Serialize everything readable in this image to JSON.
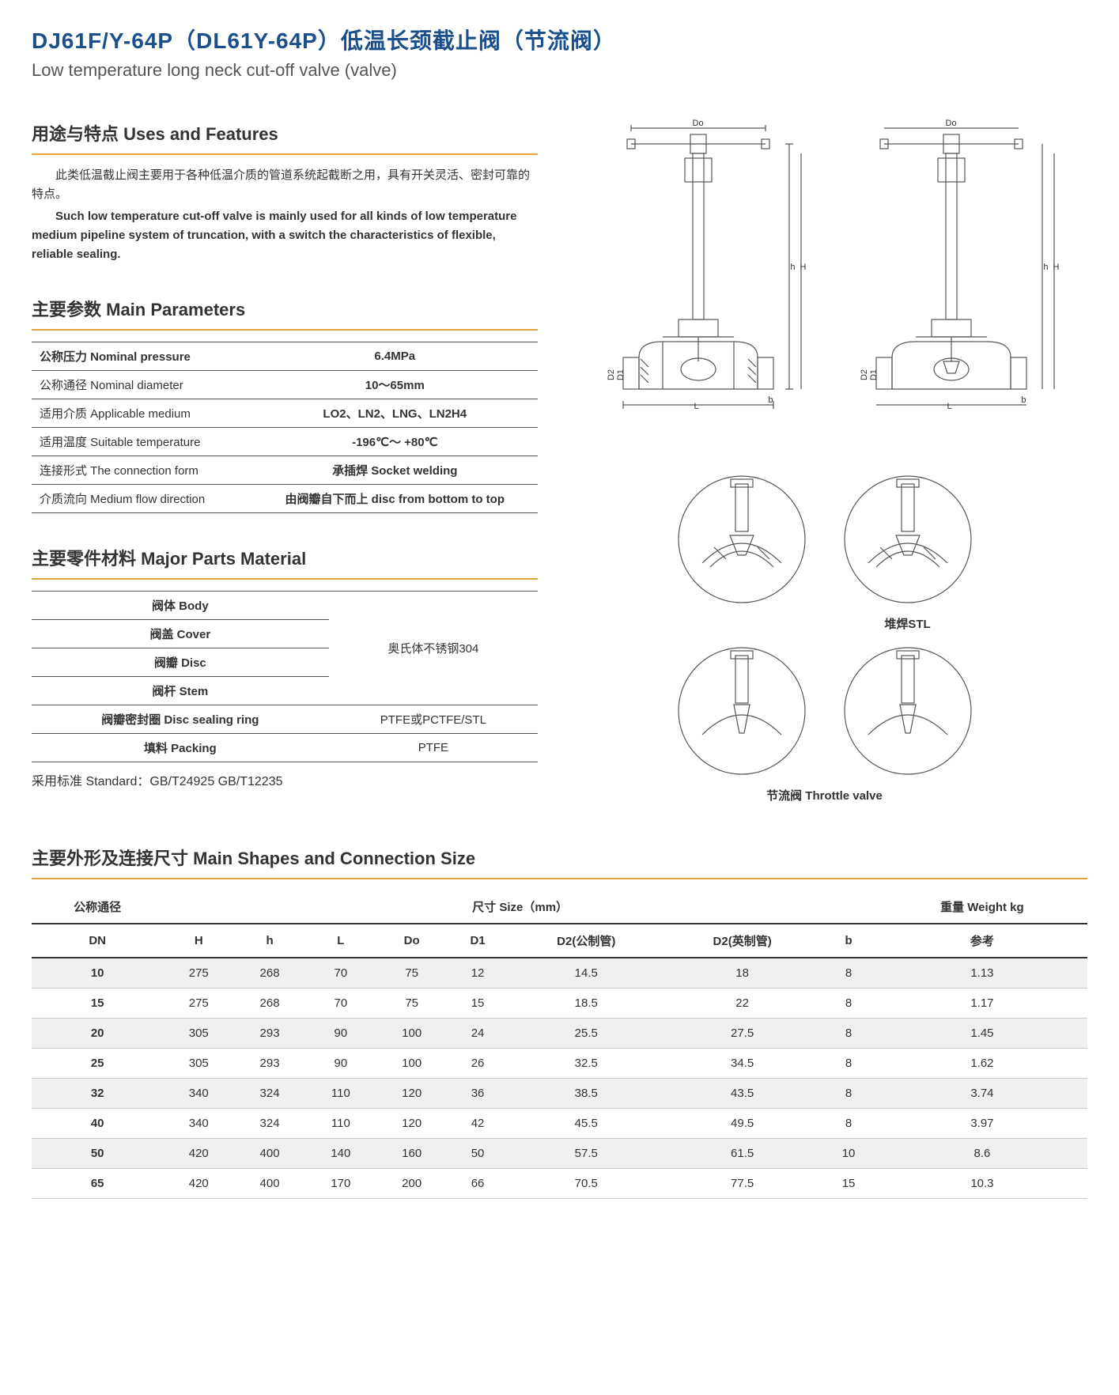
{
  "header": {
    "title_cn": "DJ61F/Y-64P（DL61Y-64P）低温长颈截止阀（节流阀）",
    "title_en": "Low temperature long neck cut-off valve (valve)",
    "title_color": "#1a4f8c",
    "title_fontsize": 28
  },
  "uses": {
    "heading": "用途与特点 Uses and Features",
    "para_cn": "此类低温截止阀主要用于各种低温介质的管道系统起截断之用，具有开关灵活、密封可靠的特点。",
    "para_en": "Such low temperature cut-off valve is mainly used for all kinds of low temperature medium pipeline system of truncation, with a switch the characteristics of flexible, reliable sealing."
  },
  "params": {
    "heading": "主要参数 Main Parameters",
    "rows": [
      {
        "label": "公称压力 Nominal pressure",
        "value": "6.4MPa"
      },
      {
        "label": "公称通径 Nominal diameter",
        "value": "10～65mm"
      },
      {
        "label": "适用介质 Applicable medium",
        "value": "LO2、LN2、LNG、LN2H4"
      },
      {
        "label": "适用温度 Suitable temperature",
        "value": "-196℃～ +80℃"
      },
      {
        "label": "连接形式 The connection form",
        "value": "承插焊 Socket welding"
      },
      {
        "label": "介质流向 Medium flow direction",
        "value": "由阀瓣自下而上 disc from bottom to top"
      }
    ]
  },
  "parts": {
    "heading": "主要零件材料 Major Parts Material",
    "group_material": "奥氏体不锈钢304",
    "rows": [
      {
        "label": "阀体 Body"
      },
      {
        "label": "阀盖 Cover"
      },
      {
        "label": "阀瓣 Disc"
      },
      {
        "label": "阀杆 Stem"
      }
    ],
    "extra_rows": [
      {
        "label": "阀瓣密封圈 Disc sealing ring",
        "value": "PTFE或PCTFE/STL"
      },
      {
        "label": "填料 Packing",
        "value": "PTFE"
      }
    ],
    "standard_line": "采用标准 Standard：GB/T24925  GB/T12235"
  },
  "diagrams": {
    "detail_label_right": "堆焊STL",
    "detail_label_bottom": "节流阀 Throttle valve",
    "dim_labels": [
      "Do",
      "H",
      "h",
      "L",
      "D1",
      "D2",
      "b"
    ]
  },
  "sizes": {
    "heading": "主要外形及连接尺寸 Main Shapes and Connection Size",
    "group_headers": {
      "dn": "公称通径",
      "size": "尺寸 Size（mm）",
      "weight": "重量 Weight kg"
    },
    "columns": [
      "DN",
      "H",
      "h",
      "L",
      "Do",
      "D1",
      "D2(公制管)",
      "D2(英制管)",
      "b",
      "参考"
    ],
    "rows": [
      [
        "10",
        "275",
        "268",
        "70",
        "75",
        "12",
        "14.5",
        "18",
        "8",
        "1.13"
      ],
      [
        "15",
        "275",
        "268",
        "70",
        "75",
        "15",
        "18.5",
        "22",
        "8",
        "1.17"
      ],
      [
        "20",
        "305",
        "293",
        "90",
        "100",
        "24",
        "25.5",
        "27.5",
        "8",
        "1.45"
      ],
      [
        "25",
        "305",
        "293",
        "90",
        "100",
        "26",
        "32.5",
        "34.5",
        "8",
        "1.62"
      ],
      [
        "32",
        "340",
        "324",
        "110",
        "120",
        "36",
        "38.5",
        "43.5",
        "8",
        "3.74"
      ],
      [
        "40",
        "340",
        "324",
        "110",
        "120",
        "42",
        "45.5",
        "49.5",
        "8",
        "3.97"
      ],
      [
        "50",
        "420",
        "400",
        "140",
        "160",
        "50",
        "57.5",
        "61.5",
        "10",
        "8.6"
      ],
      [
        "65",
        "420",
        "400",
        "170",
        "200",
        "66",
        "70.5",
        "77.5",
        "15",
        "10.3"
      ]
    ],
    "row_stripe_odd": "#f0f0f0",
    "row_stripe_even": "#ffffff"
  },
  "styling": {
    "divider_color": "#e3a23a",
    "border_color": "#555555",
    "text_color": "#333333",
    "background": "#ffffff"
  }
}
